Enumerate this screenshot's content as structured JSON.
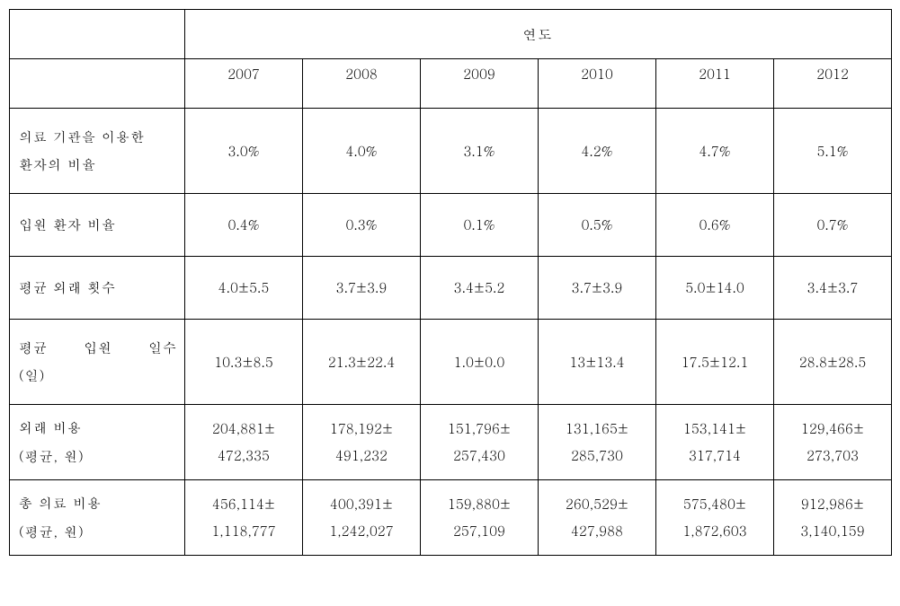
{
  "table": {
    "type": "table",
    "border_color": "#000000",
    "background_color": "#ffffff",
    "font_family": "Batang, Times New Roman, serif",
    "font_size_pt": 11,
    "header_group_label": "연도",
    "columns": [
      "2007",
      "2008",
      "2009",
      "2010",
      "2011",
      "2012"
    ],
    "rows": [
      {
        "label": "의료 기관을 이용한 환자의 비율",
        "cells": [
          "3.0%",
          "4.0%",
          "3.1%",
          "4.2%",
          "4.7%",
          "5.1%"
        ]
      },
      {
        "label": "입원 환자 비율",
        "cells": [
          "0.4%",
          "0.3%",
          "0.1%",
          "0.5%",
          "0.6%",
          "0.7%"
        ]
      },
      {
        "label": "평균 외래 횟수",
        "cells": [
          "4.0±5.5",
          "3.7±3.9",
          "3.4±5.2",
          "3.7±3.9",
          "5.0±14.0",
          "3.4±3.7"
        ]
      },
      {
        "label": "평균 입원 일수 (일)",
        "cells": [
          "10.3±8.5",
          "21.3±22.4",
          "1.0±0.0",
          "13±13.4",
          "17.5±12.1",
          "28.8±28.5"
        ]
      },
      {
        "label": "외래 비용\n(평균, 원)",
        "cells": [
          "204,881± 472,335",
          "178,192± 491,232",
          "151,796± 257,430",
          "131,165± 285,730",
          "153,141± 317,714",
          "129,466± 273,703"
        ]
      },
      {
        "label": "총 의료 비용\n(평균, 원)",
        "cells": [
          "456,114± 1,118,777",
          "400,391± 1,242,027",
          "159,880± 257,109",
          "260,529± 427,988",
          "575,480± 1,872,603",
          "912,986± 3,140,159"
        ]
      }
    ]
  }
}
